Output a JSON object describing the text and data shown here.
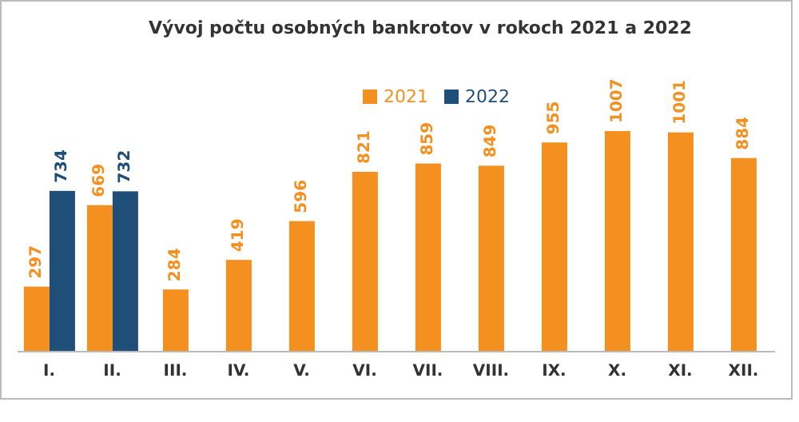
{
  "chart_data": {
    "type": "bar",
    "title": "Vývoj počtu osobných bankrotov v rokoch 2021 a 2022",
    "categories": [
      "I.",
      "II.",
      "III.",
      "IV.",
      "V.",
      "VI.",
      "VII.",
      "VIII.",
      "IX.",
      "X.",
      "XI.",
      "XII."
    ],
    "series": [
      {
        "name": "2021",
        "color": "#f39020",
        "values": [
          297,
          669,
          284,
          419,
          596,
          821,
          859,
          849,
          955,
          1007,
          1001,
          884
        ]
      },
      {
        "name": "2022",
        "color": "#1f4e79",
        "values": [
          734,
          732,
          null,
          null,
          null,
          null,
          null,
          null,
          null,
          null,
          null,
          null
        ]
      }
    ],
    "data_labels": true,
    "legend": "top",
    "grid": false
  }
}
